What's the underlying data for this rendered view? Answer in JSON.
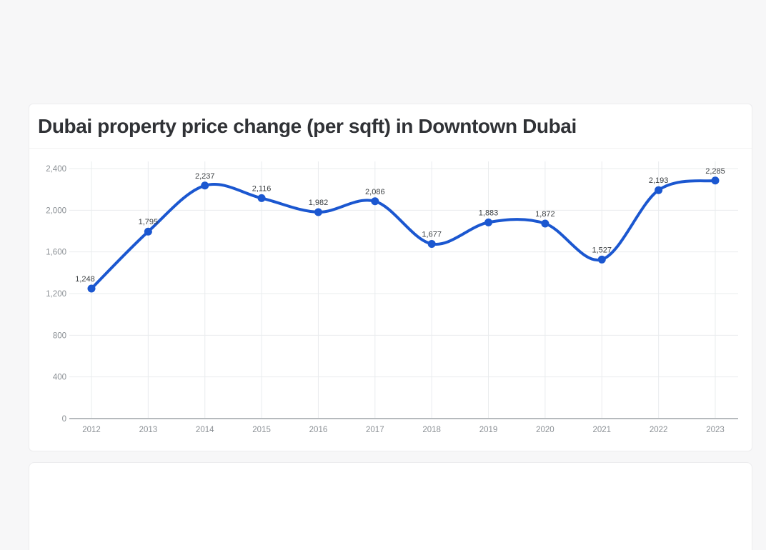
{
  "page": {
    "background_color": "#f7f7f8"
  },
  "card": {
    "title": "Dubai property price change (per sqft) in Downtown Dubai"
  },
  "colors": {
    "line": "#1b57d0",
    "point": "#1b57d0",
    "grid": "#e9ecee",
    "axis_baseline": "#b6babd",
    "tick_text": "#8b9095",
    "point_label_text": "#3c4043",
    "card_background": "#ffffff",
    "card_border": "#ececee"
  },
  "chart_data": {
    "type": "line",
    "title": "Dubai property price change (per sqft) in Downtown Dubai",
    "xlabel": "",
    "ylabel": "",
    "categories": [
      "2012",
      "2013",
      "2014",
      "2015",
      "2016",
      "2017",
      "2018",
      "2019",
      "2020",
      "2021",
      "2022",
      "2023"
    ],
    "values": [
      1248,
      1795,
      2237,
      2116,
      1982,
      2086,
      1677,
      1883,
      1872,
      1527,
      2193,
      2285
    ],
    "point_labels": [
      "1,248",
      "1,795",
      "2,237",
      "2,116",
      "1,982",
      "2,086",
      "1,677",
      "1,883",
      "1,872",
      "1,527",
      "2,193",
      "2,285"
    ],
    "ylim": [
      0,
      2400
    ],
    "yticks": [
      0,
      400,
      800,
      1200,
      1600,
      2000,
      2400
    ],
    "ytick_labels": [
      "0",
      "400",
      "800",
      "1,200",
      "1,600",
      "2,000",
      "2,400"
    ],
    "grid": true,
    "smooth": true,
    "legend": "none"
  }
}
